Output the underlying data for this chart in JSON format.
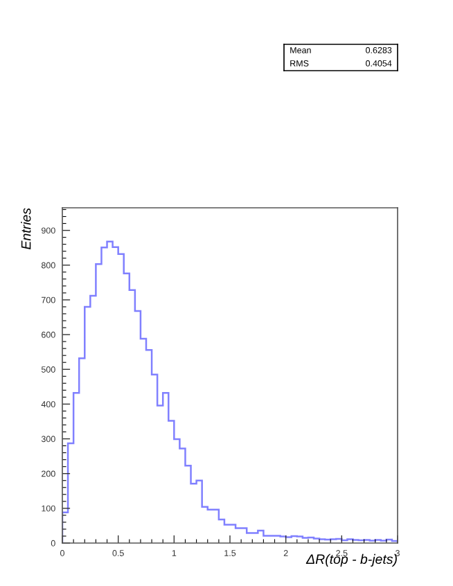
{
  "chart_data": {
    "type": "histogram",
    "xlabel": "ΔR(top - b-jets)",
    "ylabel": "Entries",
    "color": "#8080ff",
    "bins": [
      0,
      0.05,
      0.1,
      0.15,
      0.2,
      0.25,
      0.3,
      0.35,
      0.4,
      0.45,
      0.5,
      0.55,
      0.6,
      0.65,
      0.7,
      0.75,
      0.8,
      0.85,
      0.9,
      0.95,
      1,
      1.05,
      1.1,
      1.15,
      1.2,
      1.25,
      1.3,
      1.35,
      1.4,
      1.45,
      1.5,
      1.55,
      1.6,
      1.65,
      1.7,
      1.75,
      1.8,
      1.85,
      1.9,
      1.95,
      2,
      2.05,
      2.1,
      2.15,
      2.2,
      2.25,
      2.3,
      2.35,
      2.4,
      2.45,
      2.5,
      2.55,
      2.6,
      2.65,
      2.7,
      2.75,
      2.8,
      2.85,
      2.9,
      2.95,
      3
    ],
    "values": [
      88,
      287,
      432,
      532,
      680,
      712,
      803,
      851,
      868,
      852,
      832,
      776,
      728,
      668,
      588,
      556,
      485,
      396,
      432,
      352,
      299,
      272,
      223,
      171,
      180,
      104,
      96,
      96,
      68,
      53,
      53,
      43,
      43,
      29,
      29,
      36,
      21,
      21,
      21,
      19,
      17,
      20,
      19,
      15,
      16,
      13,
      11,
      10,
      11,
      12,
      8,
      11,
      9,
      8,
      9,
      7,
      9,
      7,
      10,
      6
    ],
    "xlim": [
      0,
      3
    ],
    "ylim": [
      0,
      965
    ],
    "xticks": [
      0,
      0.5,
      1,
      1.5,
      2,
      2.5,
      3
    ],
    "yticks": [
      0,
      100,
      200,
      300,
      400,
      500,
      600,
      700,
      800,
      900
    ],
    "annotations": [
      "Mean",
      "0.6283",
      "RMS",
      "0.4054"
    ]
  }
}
